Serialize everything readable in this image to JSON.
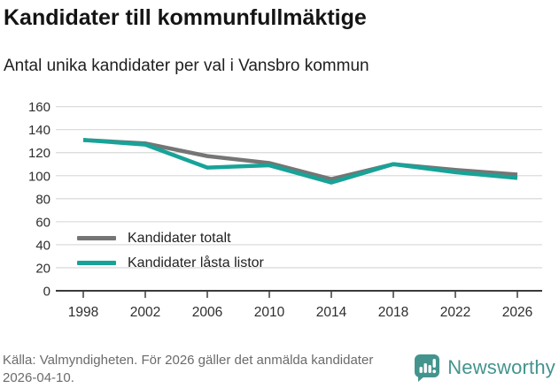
{
  "header": {
    "title": "Kandidater till kommunfullmäktige",
    "subtitle": "Antal unika kandidater per val i Vansbro kommun"
  },
  "chart_data": {
    "type": "line",
    "title": "Kandidater till kommunfullmäktige",
    "subtitle": "Antal unika kandidater per val i Vansbro kommun",
    "x": [
      1998,
      2002,
      2006,
      2010,
      2014,
      2018,
      2022,
      2026
    ],
    "series": [
      {
        "name": "Kandidater totalt",
        "color": "#757575",
        "values": [
          131,
          128,
          117,
          111,
          97,
          110,
          105,
          101
        ]
      },
      {
        "name": "Kandidater låsta listor",
        "color": "#17A398",
        "values": [
          131,
          127,
          107,
          109,
          94,
          110,
          103,
          98
        ]
      }
    ],
    "ylim": [
      0,
      160
    ],
    "ytick_step": 20,
    "grid": true,
    "legend_position": "inside-lower-left",
    "colors": {
      "gridline": "#dcdcdc",
      "axis": "#3a3a3a",
      "tick_label": "#2e2e2e"
    }
  },
  "footer": {
    "source_text": "Källa: Valmyndigheten. För 2026 gäller det anmälda kandidater 2026-04-10.",
    "brand": "Newsworthy",
    "brand_color": "#44948E"
  }
}
